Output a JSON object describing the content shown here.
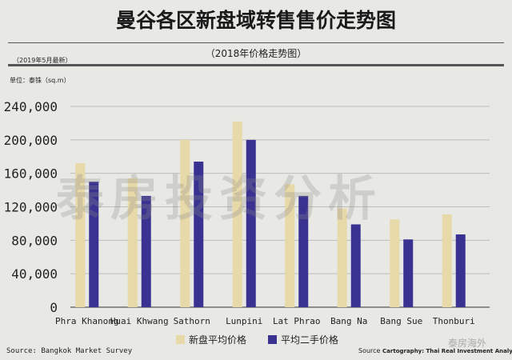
{
  "title": "曼谷各区新盘域转售售价走势图",
  "subtitle": "（2018年价格走势图）",
  "date_note": "（2019年5月最新）",
  "unit_note": "单位：泰铢（sq.m）",
  "watermark": "泰房投资分析",
  "wechat_badge": "泰房海外",
  "footer": {
    "source": "Source: Bangkok Market Survey",
    "source_prefix": "Source",
    "cartography": "Cartography: Thai Real Investment Analysis"
  },
  "colors": {
    "background": "#e8e8e4",
    "new": "#e7d9a8",
    "resale": "#3a3291"
  },
  "chart_data": {
    "type": "bar",
    "categories": [
      "Phra Khanong",
      "Huai Khwang",
      "Sathorn",
      "Lunpini",
      "Lat Phrao",
      "Bang Na",
      "Bang Sue",
      "Thonburi"
    ],
    "series": [
      {
        "name": "新盘平均价格",
        "values": [
          172000,
          154000,
          200000,
          222000,
          147000,
          118000,
          105000,
          111000
        ]
      },
      {
        "name": "平均二手价格",
        "values": [
          150000,
          133000,
          174000,
          200000,
          133000,
          99000,
          81000,
          87000
        ]
      }
    ],
    "ylim": [
      0,
      240000
    ],
    "yticks": [
      "0",
      "40,000",
      "80,000",
      "120,000",
      "160,000",
      "200,000",
      "240,000"
    ],
    "grid": true,
    "legend": "bottom"
  }
}
